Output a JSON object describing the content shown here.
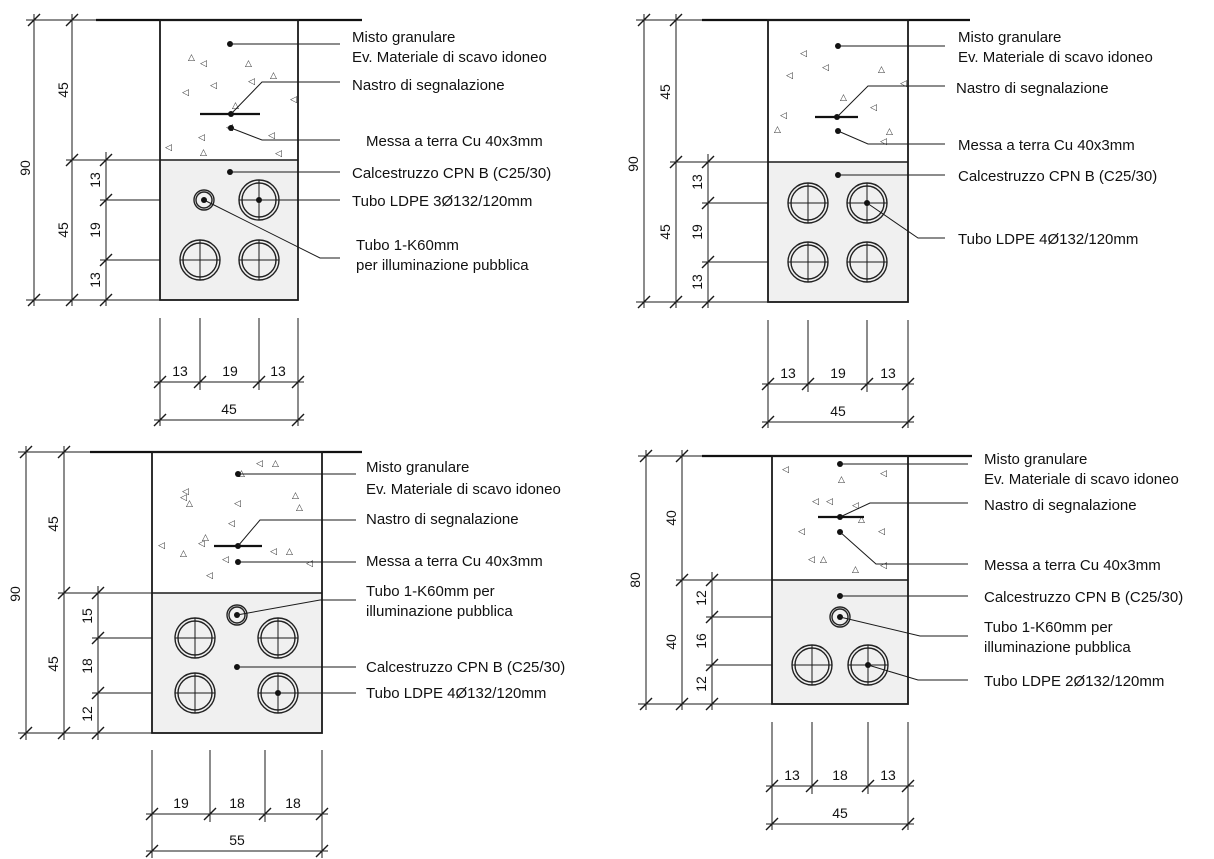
{
  "panels": [
    {
      "id": "a",
      "labels": {
        "fill": "Misto granulare",
        "fill_alt": "Ev. Materiale di scavo idoneo",
        "tape": "Nastro di segnalazione",
        "earth": "Messa a terra Cu 40x3mm",
        "concrete": "Calcestruzzo CPN B (C25/30)",
        "ducts": "Tubo LDPE 3Ø132/120mm",
        "lighting_1": "Tubo 1-K60mm",
        "lighting_2": "per illuminazione pubblica"
      },
      "dims": {
        "total_h": "90",
        "upper_h": "45",
        "lower_h": "45",
        "v1": "13",
        "v2": "19",
        "v3": "13",
        "h1": "13",
        "h2": "19",
        "h3": "13",
        "width": "45"
      }
    },
    {
      "id": "b",
      "labels": {
        "fill": "Misto granulare",
        "fill_alt": "Ev. Materiale di scavo idoneo",
        "tape": "Nastro di segnalazione",
        "earth": "Messa a terra Cu 40x3mm",
        "concrete": "Calcestruzzo CPN B (C25/30)",
        "ducts": "Tubo LDPE 4Ø132/120mm"
      },
      "dims": {
        "total_h": "90",
        "upper_h": "45",
        "lower_h": "45",
        "v1": "13",
        "v2": "19",
        "v3": "13",
        "h1": "13",
        "h2": "19",
        "h3": "13",
        "width": "45"
      }
    },
    {
      "id": "c",
      "labels": {
        "fill": "Misto granulare",
        "fill_alt": "Ev. Materiale di scavo idoneo",
        "tape": "Nastro di segnalazione",
        "earth": "Messa a terra Cu 40x3mm",
        "lighting_1": "Tubo 1-K60mm per",
        "lighting_2": "illuminazione pubblica",
        "concrete": "Calcestruzzo CPN B (C25/30)",
        "ducts": "Tubo LDPE 4Ø132/120mm"
      },
      "dims": {
        "total_h": "90",
        "upper_h": "45",
        "lower_h": "45",
        "v1": "15",
        "v2": "18",
        "v3": "12",
        "h1": "19",
        "h2": "18",
        "h3": "18",
        "width": "55"
      }
    },
    {
      "id": "d",
      "labels": {
        "fill": "Misto granulare",
        "fill_alt": "Ev. Materiale di scavo idoneo",
        "tape": "Nastro di segnalazione",
        "earth": "Messa a terra Cu 40x3mm",
        "concrete": "Calcestruzzo CPN B (C25/30)",
        "lighting_1": "Tubo 1-K60mm per",
        "lighting_2": "illuminazione pubblica",
        "ducts": "Tubo LDPE 2Ø132/120mm"
      },
      "dims": {
        "total_h": "80",
        "upper_h": "40",
        "lower_h": "40",
        "v1": "12",
        "v2": "16",
        "v3": "12",
        "h1": "13",
        "h2": "18",
        "h3": "13",
        "width": "45"
      }
    }
  ]
}
